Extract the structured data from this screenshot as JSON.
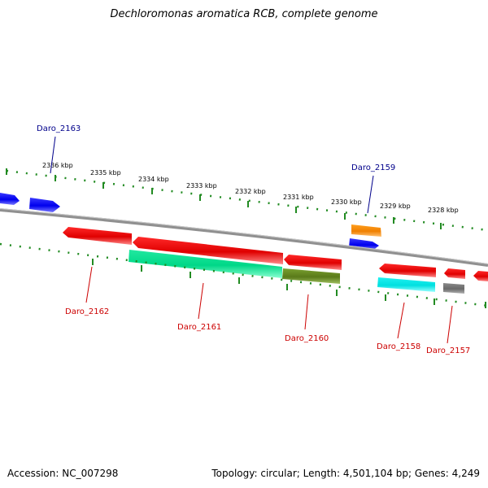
{
  "title": "Dechloromonas aromatica RCB, complete genome",
  "footer": {
    "accession": "Accession: NC_007298",
    "topology": "Topology: circular; Length: 4,501,104 bp; Genes: 4,249"
  },
  "ruler": [
    {
      "label": "2336 kbp"
    },
    {
      "label": "2335 kbp"
    },
    {
      "label": "2334 kbp"
    },
    {
      "label": "2333 kbp"
    },
    {
      "label": "2332 kbp"
    },
    {
      "label": "2331 kbp"
    },
    {
      "label": "2330 kbp"
    },
    {
      "label": "2329 kbp"
    },
    {
      "label": "2328 kbp"
    }
  ],
  "gene_labels": [
    {
      "text": "Daro_2163",
      "color": "#00008b"
    },
    {
      "text": "Daro_2159",
      "color": "#00008b"
    },
    {
      "text": "Daro_2162",
      "color": "#cc0000"
    },
    {
      "text": "Daro_2161",
      "color": "#cc0000"
    },
    {
      "text": "Daro_2160",
      "color": "#cc0000"
    },
    {
      "text": "Daro_2158",
      "color": "#cc0000"
    },
    {
      "text": "Daro_2157",
      "color": "#cc0000"
    }
  ],
  "colors": {
    "forward_cds": "#0000ff",
    "reverse_cds": "#ff0000",
    "rna": "#00ff99",
    "cyan_feature": "#00ffff",
    "orange_feature": "#ff8c00",
    "olive_feature": "#6b8e23",
    "gray_feature": "#808080",
    "backbone": "#808080",
    "ticks": "#228b22"
  }
}
